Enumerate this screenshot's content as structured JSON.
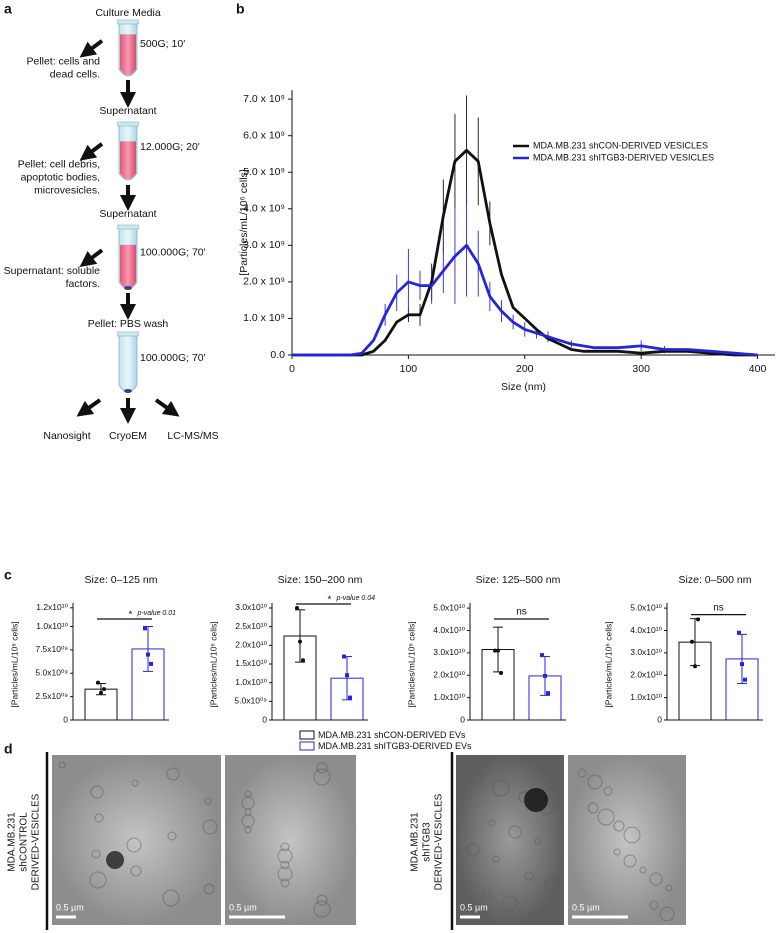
{
  "panel_labels": [
    "a",
    "b",
    "c",
    "d"
  ],
  "diagram": {
    "start": "Culture Media",
    "steps": [
      {
        "spin": "500G; 10'",
        "side": [
          "Pellet: cells and",
          "dead cells."
        ],
        "result": "Supernatant"
      },
      {
        "spin": "12.000G; 20'",
        "side": [
          "Pellet: cell debris,",
          "apoptotic bodies,",
          "microvesicles."
        ],
        "result": "Supernatant"
      },
      {
        "spin": "100.000G; 70'",
        "side": [
          "Supernatant: soluble",
          "factors."
        ],
        "result": "Pellet: PBS wash"
      },
      {
        "spin": "100.000G; 70'"
      }
    ],
    "outputs": [
      "Nanosight",
      "CryoEM",
      "LC-MS/MS"
    ]
  },
  "chart_data": [
    {
      "type": "line",
      "x": [
        0,
        20,
        40,
        50,
        60,
        70,
        80,
        90,
        100,
        110,
        120,
        130,
        140,
        150,
        160,
        170,
        180,
        190,
        200,
        210,
        220,
        230,
        240,
        250,
        260,
        280,
        300,
        320,
        340,
        360,
        380,
        400
      ],
      "series": [
        {
          "name": "MDA.MB.231 shCON-DERIVED VESICLES",
          "color": "#111111",
          "values": [
            0,
            0,
            0,
            0,
            0,
            100000000.0,
            400000000.0,
            900000000.0,
            1100000000.0,
            1100000000.0,
            2000000000.0,
            3800000000.0,
            5300000000.0,
            5600000000.0,
            5300000000.0,
            3600000000.0,
            2200000000.0,
            1300000000.0,
            1000000000.0,
            700000000.0,
            450000000.0,
            300000000.0,
            150000000.0,
            100000000.0,
            100000000.0,
            100000000.0,
            50000000.0,
            100000000.0,
            100000000.0,
            50000000.0,
            0,
            0
          ],
          "errors": [
            null,
            null,
            null,
            null,
            null,
            null,
            null,
            null,
            200000000.0,
            300000000.0,
            500000000.0,
            1000000000.0,
            1300000000.0,
            1500000000.0,
            1200000000.0,
            600000000.0,
            null,
            null,
            null,
            null,
            null,
            null,
            null,
            null,
            null,
            null,
            null,
            null,
            null,
            null,
            null,
            null
          ]
        },
        {
          "name": "MDA.MB.231 shITGB3-DERIVED VESICLES",
          "color": "#2626d9",
          "values": [
            0,
            0,
            0,
            0,
            50000000.0,
            400000000.0,
            1100000000.0,
            1700000000.0,
            2000000000.0,
            1900000000.0,
            1900000000.0,
            2300000000.0,
            2700000000.0,
            3000000000.0,
            2500000000.0,
            1600000000.0,
            1200000000.0,
            900000000.0,
            700000000.0,
            600000000.0,
            500000000.0,
            400000000.0,
            300000000.0,
            250000000.0,
            200000000.0,
            200000000.0,
            250000000.0,
            150000000.0,
            150000000.0,
            100000000.0,
            50000000.0,
            0
          ],
          "errors": [
            null,
            null,
            null,
            null,
            null,
            null,
            300000000.0,
            500000000.0,
            900000000.0,
            400000000.0,
            500000000.0,
            600000000.0,
            1300000000.0,
            1400000000.0,
            900000000.0,
            400000000.0,
            300000000.0,
            200000000.0,
            200000000.0,
            150000000.0,
            150000000.0,
            null,
            100000000.0,
            null,
            null,
            null,
            150000000.0,
            100000000.0,
            null,
            null,
            null,
            null
          ]
        }
      ],
      "xlim": [
        0,
        415
      ],
      "ylim": [
        0,
        7250000000.0
      ],
      "xticks": [
        0,
        100,
        200,
        300,
        400
      ],
      "yticks": [
        {
          "value": 0,
          "label": "0.0"
        },
        {
          "value": 1000000000.0,
          "label": "1.0 x 10⁹"
        },
        {
          "value": 2000000000.0,
          "label": "2.0 x 10⁹"
        },
        {
          "value": 3000000000.0,
          "label": "3.0 x 10⁹"
        },
        {
          "value": 4000000000.0,
          "label": "4.0 x 10⁹"
        },
        {
          "value": 5000000000.0,
          "label": "5.0 x 10⁹"
        },
        {
          "value": 6000000000.0,
          "label": "6.0 x 10⁹"
        },
        {
          "value": 7000000000.0,
          "label": "7.0 x 10⁹"
        }
      ],
      "x_label": "Size (nm)",
      "y_label": "[Particles/mL/10⁶ cells]",
      "legend": "upper right"
    },
    {
      "type": "bar",
      "title": "Size: 0–125 nm",
      "y_label": "[Particles/mL/10⁶ cells]",
      "values": [
        3300000000.0,
        7600000000.0
      ],
      "errors": [
        600000000.0,
        2400000000.0
      ],
      "points": [
        [
          4000000000.0,
          2900000000.0,
          3300000000.0
        ],
        [
          9800000000.0,
          7000000000.0,
          6000000000.0
        ]
      ],
      "ylim": [
        0,
        12300000000.0
      ],
      "yticks": [
        0,
        {
          "value": 2500000000.0,
          "label": "2.5x10⁰⁹"
        },
        {
          "value": 5000000000.0,
          "label": "5.0x10⁰⁹"
        },
        {
          "value": 7500000000.0,
          "label": "7.5x10⁰⁹"
        },
        {
          "value": 10000000000.0,
          "label": "1.0x10¹⁰"
        },
        {
          "value": 12000000000.0,
          "label": "1.2x10¹⁰"
        }
      ],
      "significance": {
        "text": "*",
        "note": "p-value 0.01"
      }
    },
    {
      "type": "bar",
      "title": "Size: 150–200 nm",
      "y_label": "[Particles/mL/10⁶ cells]",
      "values": [
        22500000000.0,
        11200000000.0
      ],
      "errors": [
        7000000000.0,
        5800000000.0
      ],
      "points": [
        [
          30000000000.0,
          21000000000.0,
          16000000000.0
        ],
        [
          17000000000.0,
          12000000000.0,
          6000000000.0
        ]
      ],
      "ylim": [
        0,
        30800000000.0
      ],
      "yticks": [
        0,
        {
          "value": 5000000000.0,
          "label": "5.0x10⁰⁹"
        },
        {
          "value": 10000000000.0,
          "label": "1.0x10¹⁰"
        },
        {
          "value": 15000000000.0,
          "label": "1.5x10¹⁰"
        },
        {
          "value": 20000000000.0,
          "label": "2.0x10¹⁰"
        },
        {
          "value": 25000000000.0,
          "label": "2.5x10¹⁰"
        },
        {
          "value": 30000000000.0,
          "label": "3.0x10¹⁰"
        }
      ],
      "significance": {
        "text": "*",
        "note": "p-value 0.04"
      }
    },
    {
      "type": "bar",
      "title": "Size: 125–500 nm",
      "y_label": "[Particles/mL/10⁶ cells]",
      "values": [
        31500000000.0,
        19700000000.0
      ],
      "errors": [
        10000000000.0,
        8700000000.0
      ],
      "points": [
        [
          31000000000.0,
          31000000000.0,
          21000000000.0
        ],
        [
          29000000000.0,
          19700000000.0,
          12000000000.0
        ]
      ],
      "ylim": [
        0,
        51400000000.0
      ],
      "yticks": [
        0,
        {
          "value": 10000000000.0,
          "label": "1.0x10¹⁰"
        },
        {
          "value": 20000000000.0,
          "label": "2.0x10¹⁰"
        },
        {
          "value": 30000000000.0,
          "label": "3.0x10¹⁰"
        },
        {
          "value": 40000000000.0,
          "label": "4.0x10¹⁰"
        },
        {
          "value": 50000000000.0,
          "label": "5.0x10¹⁰"
        }
      ],
      "significance": {
        "text": "ns"
      }
    },
    {
      "type": "bar",
      "title": "Size: 0–500 nm",
      "y_label": "[Particles/mL/10⁶ cells]",
      "values": [
        34800000000.0,
        27300000000.0
      ],
      "errors": [
        10500000000.0,
        11000000000.0
      ],
      "points": [
        [
          35000000000.0,
          24000000000.0,
          45000000000.0
        ],
        [
          39000000000.0,
          25000000000.0,
          18000000000.0
        ]
      ],
      "ylim": [
        0,
        51400000000.0
      ],
      "yticks": [
        0,
        {
          "value": 10000000000.0,
          "label": "1.0x10¹⁰"
        },
        {
          "value": 20000000000.0,
          "label": "2.0x10¹⁰"
        },
        {
          "value": 30000000000.0,
          "label": "3.0x10¹⁰"
        },
        {
          "value": 40000000000.0,
          "label": "4.0x10¹⁰"
        },
        {
          "value": 50000000000.0,
          "label": "5.0x10¹⁰"
        }
      ],
      "significance": {
        "text": "ns"
      }
    }
  ],
  "bar_legend": [
    {
      "name": "MDA.MB.231 shCON-DERIVED EVs",
      "color": "#111111"
    },
    {
      "name": "MDA.MB.231 shITGB3-DERIVED EVs",
      "color": "#2626d9"
    }
  ],
  "micrographs": {
    "groups": [
      {
        "label": [
          "MDA.MB.231",
          "shCONTROL",
          "DERIVED-VESICLES"
        ],
        "scale_bars": [
          "0.5 µm",
          "0.5 µm"
        ]
      },
      {
        "label": [
          "MDA.MB.231",
          "shITGB3",
          "DERIVED-VESICLES"
        ],
        "scale_bars": [
          "0.5 µm",
          "0.5 µm"
        ]
      }
    ]
  }
}
